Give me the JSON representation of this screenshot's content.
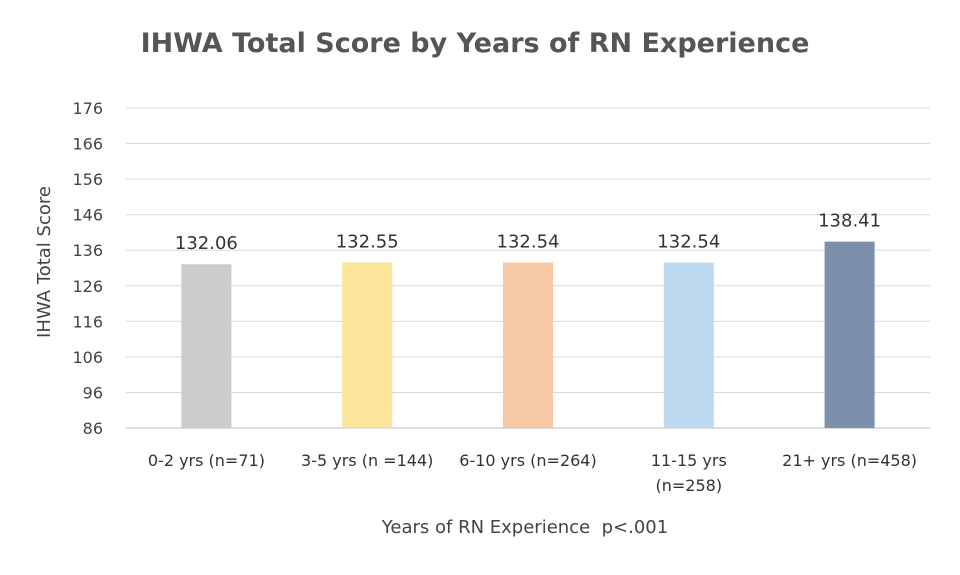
{
  "chart_data": {
    "type": "bar",
    "title": "IHWA Total Score by Years of RN Experience",
    "xlabel": "Years of RN Experience  p<.001",
    "ylabel": "IHWA Total Score",
    "ylim": [
      86,
      176
    ],
    "yticks": [
      176,
      166,
      156,
      146,
      136,
      126,
      116,
      106,
      96,
      86
    ],
    "grid": true,
    "categories": [
      [
        "0-2 yrs (n=71)"
      ],
      [
        "3-5 yrs (n =144)"
      ],
      [
        "6-10 yrs (n=264)"
      ],
      [
        "11-15 yrs",
        "(n=258)"
      ],
      [
        "21+ yrs (n=458)"
      ]
    ],
    "values": [
      132.06,
      132.55,
      132.54,
      132.54,
      138.41
    ],
    "value_labels": [
      "132.06",
      "132.55",
      "132.54",
      "132.54",
      "138.41"
    ],
    "colors": [
      "#cccccc",
      "#fae59a",
      "#f6c8a6",
      "#bcd9ef",
      "#7c90ab"
    ]
  }
}
